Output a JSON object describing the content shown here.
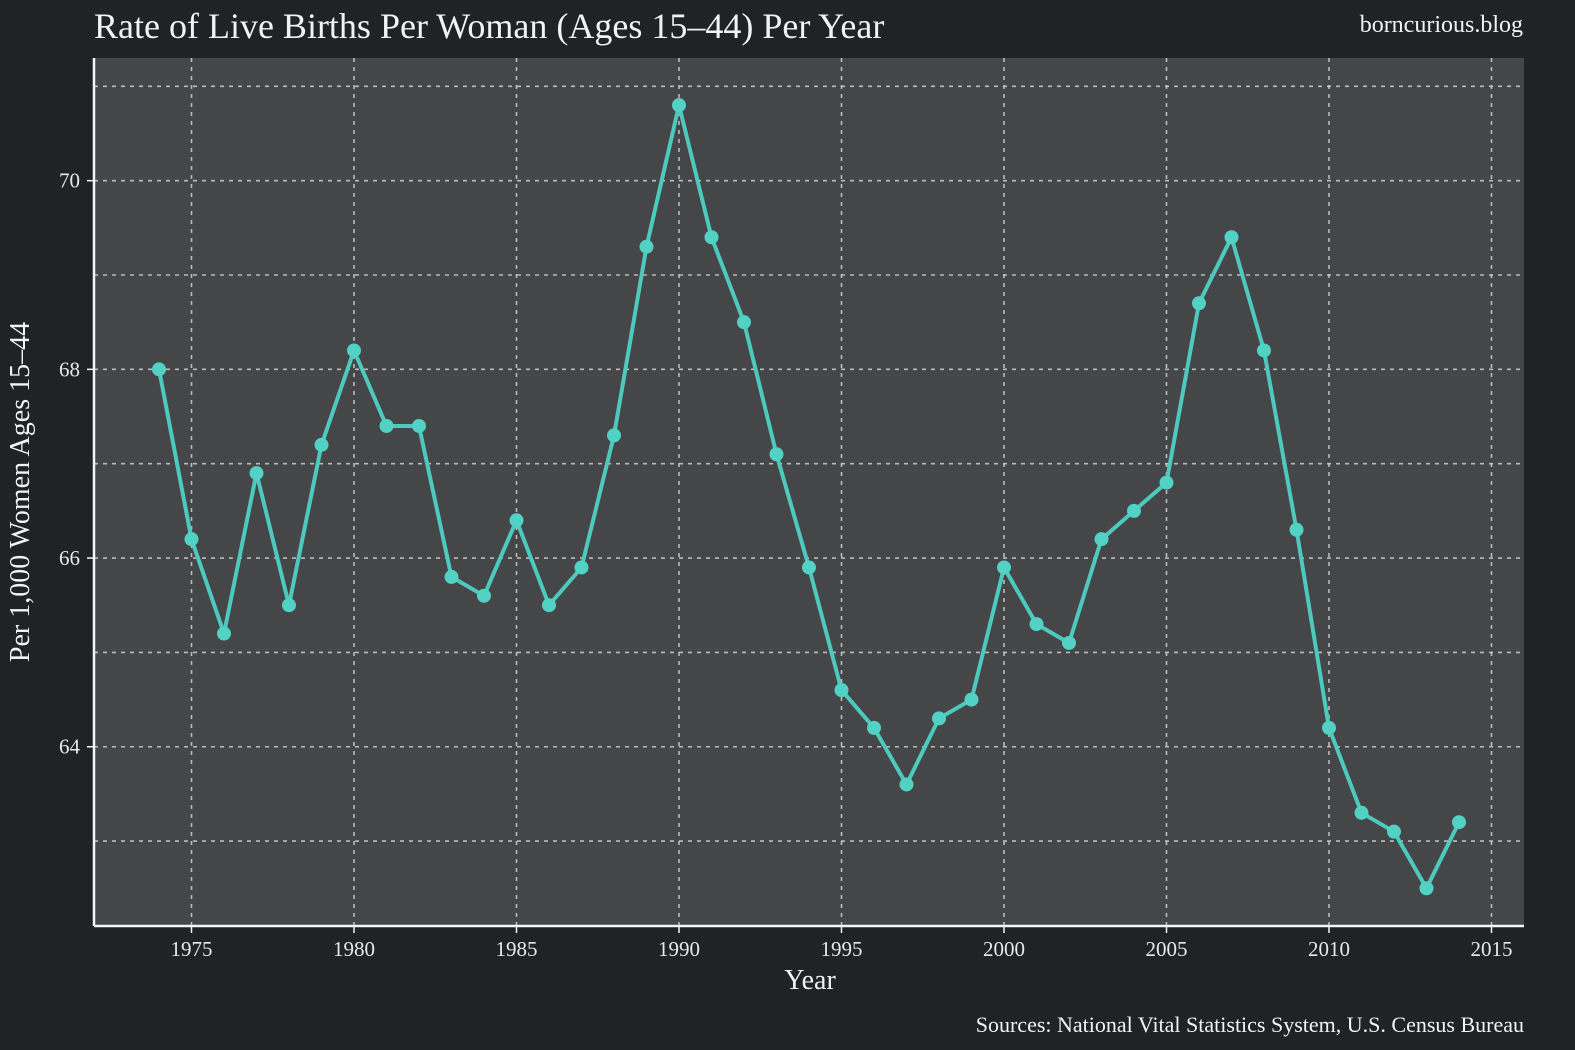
{
  "header": {
    "title": "Rate of Live Births Per Woman (Ages 15–44) Per Year",
    "watermark": "borncurious.blog"
  },
  "footer": {
    "source": "Sources: National Vital Statistics System, U.S. Census Bureau"
  },
  "colors": {
    "background": "#212224",
    "plot_background": "#454648",
    "series": "#4ec9bd",
    "marker": "#52d1c5"
  },
  "chart_data": {
    "type": "line",
    "title": "Rate of Live Births Per Woman (Ages 15–44) Per Year",
    "xlabel": "Year",
    "ylabel": "Per 1,000 Women Ages 15–44",
    "xlim": [
      1972,
      2016
    ],
    "ylim": [
      62.1,
      71.3
    ],
    "x_ticks": [
      1975,
      1980,
      1985,
      1990,
      1995,
      2000,
      2005,
      2010,
      2015
    ],
    "y_ticks": [
      64,
      66,
      68,
      70
    ],
    "y_grid": [
      63,
      64,
      65,
      66,
      67,
      68,
      69,
      70,
      71
    ],
    "grid": true,
    "markers": true,
    "series": [
      {
        "x": [
          1974,
          1975,
          1976,
          1977,
          1978,
          1979,
          1980,
          1981,
          1982,
          1983,
          1984,
          1985,
          1986,
          1987,
          1988,
          1989,
          1990,
          1991,
          1992,
          1993,
          1994,
          1995,
          1996,
          1997,
          1998,
          1999,
          2000,
          2001,
          2002,
          2003,
          2004,
          2005,
          2006,
          2007,
          2008,
          2009,
          2010,
          2011,
          2012,
          2013,
          2014
        ],
        "values": [
          68.0,
          66.2,
          65.2,
          66.9,
          65.5,
          67.2,
          68.2,
          67.4,
          67.4,
          65.8,
          65.6,
          66.4,
          65.5,
          65.9,
          67.3,
          69.3,
          70.8,
          69.4,
          68.5,
          67.1,
          65.9,
          64.6,
          64.2,
          63.6,
          64.3,
          64.5,
          65.9,
          65.3,
          65.1,
          66.2,
          66.5,
          66.8,
          68.7,
          69.4,
          68.2,
          66.3,
          64.2,
          63.3,
          63.1,
          62.5,
          63.2
        ]
      }
    ]
  }
}
